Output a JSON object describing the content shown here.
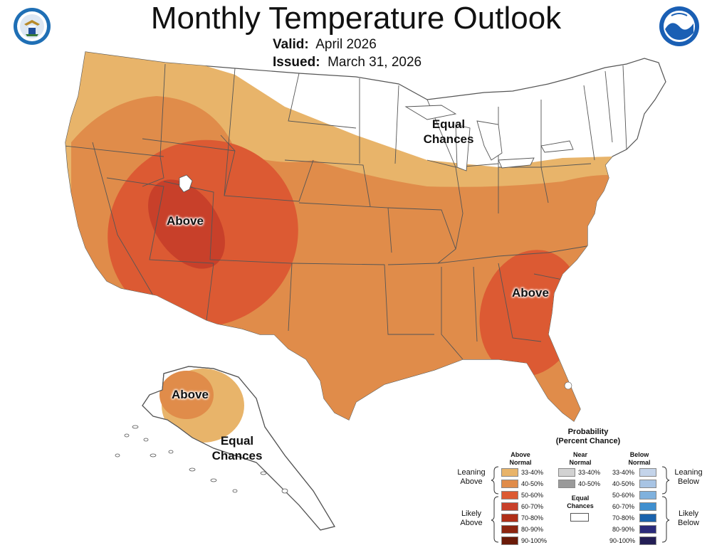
{
  "header": {
    "title": "Monthly Temperature Outlook",
    "valid_label": "Valid:",
    "valid_value": "April 2026",
    "issued_label": "Issued:",
    "issued_value": "March 31, 2026"
  },
  "map_labels": {
    "west_above": "Above",
    "southeast_above": "Above",
    "alaska_above": "Above",
    "equal_chances_conus": "Equal\nChances",
    "equal_chances_alaska": "Equal\nChances"
  },
  "colors": {
    "above_33_40": "#e8b46a",
    "above_40_50": "#e08c4a",
    "above_50_60": "#dc5a33",
    "above_60_70": "#c8402a",
    "above_70_80": "#b02f18",
    "above_80_90": "#8c2510",
    "above_90_100": "#6a1a08",
    "near_33_40": "#d2d2d2",
    "near_40_50": "#9a9a9a",
    "below_33_40": "#c4d4ea",
    "below_40_50": "#a8c4e4",
    "below_50_60": "#7fb1dd",
    "below_60_70": "#3f8fcf",
    "below_70_80": "#1a62ac",
    "below_80_90": "#2a2a7a",
    "below_90_100": "#231e55",
    "equal": "#ffffff",
    "border": "#555555"
  },
  "legend": {
    "title": "Probability\n(Percent Chance)",
    "above_head": "Above\nNormal",
    "near_head": "Near\nNormal",
    "below_head": "Below\nNormal",
    "equal_label": "Equal\nChances",
    "leaning_above": "Leaning\nAbove",
    "likely_above": "Likely\nAbove",
    "leaning_below": "Leaning\nBelow",
    "likely_below": "Likely\nBelow",
    "above_items": [
      "33-40%",
      "40-50%",
      "50-60%",
      "60-70%",
      "70-80%",
      "80-90%",
      "90-100%"
    ],
    "near_items": [
      "33-40%",
      "40-50%"
    ],
    "below_items": [
      "33-40%",
      "40-50%",
      "50-60%",
      "60-70%",
      "70-80%",
      "80-90%",
      "90-100%"
    ]
  },
  "logos": {
    "left_seal_icon": "doc-seal-icon",
    "right_logo_icon": "noaa-logo-icon"
  }
}
